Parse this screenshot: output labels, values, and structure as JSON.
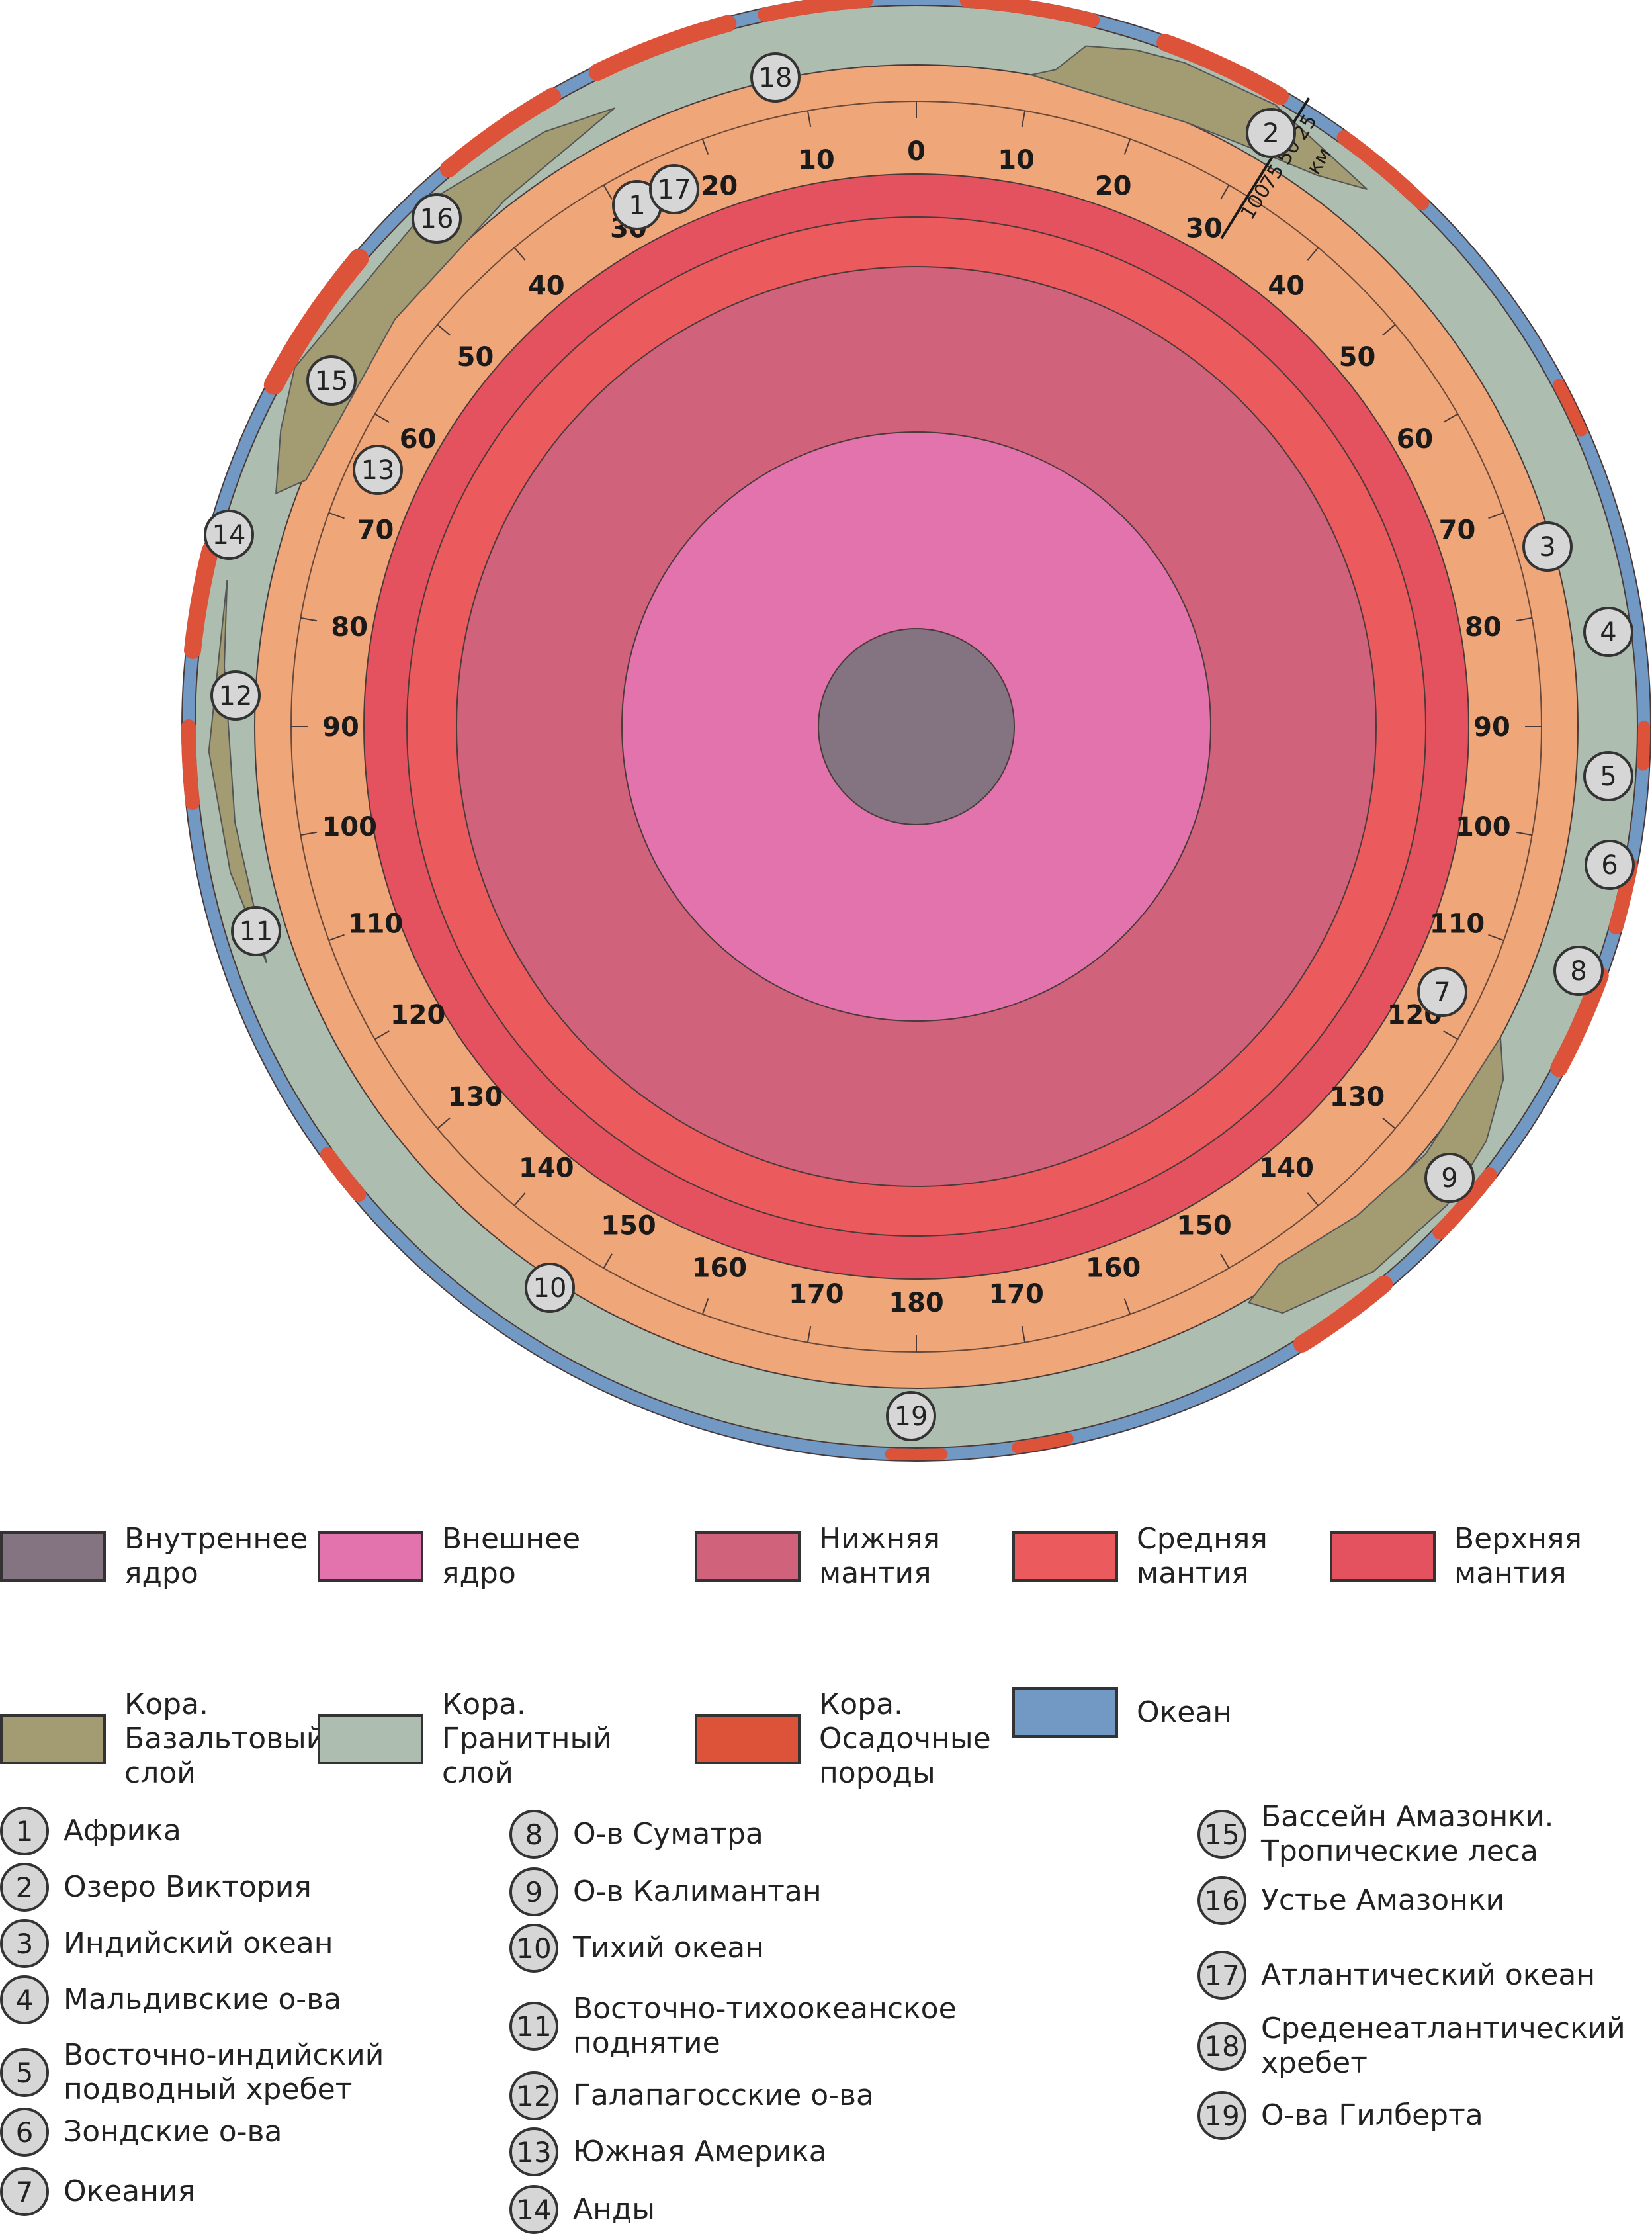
{
  "layers": [
    {
      "id": "inner-core",
      "label": "Внутреннее\nядро",
      "color": "#847380"
    },
    {
      "id": "outer-core",
      "label": "Внешнее\nядро",
      "color": "#e273ad"
    },
    {
      "id": "lower-mantle",
      "label": "Нижняя\nмантия",
      "color": "#d0627c"
    },
    {
      "id": "middle-mantle",
      "label": "Средняя\nмантия",
      "color": "#eb5a5d"
    },
    {
      "id": "upper-mantle",
      "label": "Верхняя\nмантия",
      "color": "#e4525f"
    },
    {
      "id": "basalt",
      "label": "Кора.\nБазальтовый\nслой",
      "color": "#a39b72"
    },
    {
      "id": "granite",
      "label": "Кора.\nГранитный\nслой",
      "color": "#adbdaf"
    },
    {
      "id": "sediment",
      "label": "Кора.\nОсадочные\nпороды",
      "color": "#dd5339"
    },
    {
      "id": "ocean",
      "label": "Океан",
      "color": "#7199c3"
    }
  ],
  "extra_colors": {
    "mantle_band": "#efa679"
  },
  "degree_labels": {
    "left": [
      "0",
      "10",
      "20",
      "30",
      "40",
      "50",
      "60",
      "70",
      "80",
      "90",
      "100",
      "110",
      "120",
      "130",
      "140",
      "150",
      "160",
      "170",
      "180"
    ],
    "right": [
      "10",
      "20",
      "30",
      "40",
      "50",
      "60",
      "70",
      "80",
      "90",
      "100",
      "110",
      "120",
      "130",
      "140",
      "150",
      "160",
      "170"
    ]
  },
  "scale": {
    "ticks": [
      "25",
      "50",
      "75",
      "100"
    ],
    "unit": "км"
  },
  "locations": [
    {
      "num": "1",
      "name": "Африка"
    },
    {
      "num": "2",
      "name": "Озеро Виктория"
    },
    {
      "num": "3",
      "name": "Индийский океан"
    },
    {
      "num": "4",
      "name": "Мальдивские о-ва"
    },
    {
      "num": "5",
      "name": "Восточно-индийский\nподводный хребет"
    },
    {
      "num": "6",
      "name": "Зондские о-ва"
    },
    {
      "num": "7",
      "name": "Океания"
    },
    {
      "num": "8",
      "name": "О-в Суматра"
    },
    {
      "num": "9",
      "name": "О-в Калимантан"
    },
    {
      "num": "10",
      "name": "Тихий океан"
    },
    {
      "num": "11",
      "name": "Восточно-тихоокеанское\nподнятие"
    },
    {
      "num": "12",
      "name": "Галапагосские о-ва"
    },
    {
      "num": "13",
      "name": "Южная Америка"
    },
    {
      "num": "14",
      "name": "Анды"
    },
    {
      "num": "15",
      "name": "Бассейн Амазонки.\nТропические леса"
    },
    {
      "num": "16",
      "name": "Устье Амазонки"
    },
    {
      "num": "17",
      "name": "Атлантический океан"
    },
    {
      "num": "18",
      "name": "Среденеатлантический\nхребет"
    },
    {
      "num": "19",
      "name": "О-ва Гилберта"
    }
  ]
}
